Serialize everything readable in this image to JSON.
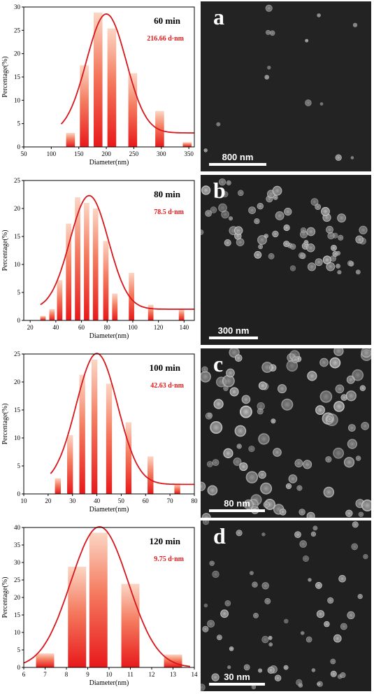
{
  "chart_data": [
    {
      "type": "bar",
      "panel": "a",
      "time_label": "60 min",
      "mean_label": "216.66 d·nm",
      "xlabel": "Diameter(nm)",
      "ylabel": "Percentage(%)",
      "xlim": [
        50,
        360
      ],
      "ylim": [
        0,
        30
      ],
      "xticks": [
        50,
        100,
        150,
        200,
        250,
        300,
        350
      ],
      "yticks": [
        0,
        5,
        10,
        15,
        20,
        25,
        30
      ],
      "bar_width": 16,
      "x": [
        135,
        160,
        185,
        210,
        248,
        297,
        347
      ],
      "values": [
        3.0,
        17.5,
        28.8,
        25.4,
        15.8,
        7.7,
        1.0
      ],
      "fit_center": 200,
      "fit_sigma": 36,
      "fit_amplitude": 25.5,
      "fit_baseline": 3.0,
      "fit_range": [
        118,
        360
      ],
      "sem_scale": "800 nm",
      "sem_letter": "a"
    },
    {
      "type": "bar",
      "panel": "b",
      "time_label": "80 min",
      "mean_label": "78.5 d·nm",
      "xlabel": "Diameter(nm)",
      "ylabel": "Percentage(%)",
      "xlim": [
        15,
        148
      ],
      "ylim": [
        0,
        25
      ],
      "xticks": [
        20,
        40,
        60,
        80,
        100,
        120,
        140
      ],
      "yticks": [
        0,
        5,
        10,
        15,
        20,
        25
      ],
      "bar_width": 4.2,
      "x": [
        30,
        37,
        43,
        50,
        57,
        64,
        71,
        79,
        86,
        99,
        114,
        138
      ],
      "values": [
        0.8,
        2.0,
        7.2,
        17.3,
        22.0,
        21.0,
        20.0,
        14.2,
        4.8,
        8.5,
        2.8,
        2.0
      ],
      "fit_center": 66,
      "fit_sigma": 15,
      "fit_amplitude": 20.3,
      "fit_baseline": 2.0,
      "fit_range": [
        28,
        148
      ],
      "sem_scale": "300 nm",
      "sem_letter": "b"
    },
    {
      "type": "bar",
      "panel": "c",
      "time_label": "100 min",
      "mean_label": "42.63 d·nm",
      "xlabel": "Diameter(nm)",
      "ylabel": "Percentage(%)",
      "xlim": [
        10,
        80
      ],
      "ylim": [
        0,
        25
      ],
      "xticks": [
        10,
        20,
        30,
        40,
        50,
        60,
        70,
        80
      ],
      "yticks": [
        0,
        5,
        10,
        15,
        20,
        25
      ],
      "bar_width": 2.4,
      "x": [
        24,
        29,
        34,
        39,
        45,
        53,
        62,
        73
      ],
      "values": [
        2.8,
        10.5,
        21.3,
        24.0,
        19.7,
        12.8,
        6.7,
        1.7
      ],
      "fit_center": 40,
      "fit_sigma": 8.5,
      "fit_amplitude": 23.4,
      "fit_baseline": 1.7,
      "fit_range": [
        21,
        80
      ],
      "sem_scale": "80 nm",
      "sem_letter": "c"
    },
    {
      "type": "bar",
      "panel": "d",
      "time_label": "120 min",
      "mean_label": "9.75 d·nm",
      "xlabel": "Diameter(nm)",
      "ylabel": "Percentage(%)",
      "xlim": [
        6,
        14
      ],
      "ylim": [
        0,
        40
      ],
      "xticks": [
        6,
        7,
        8,
        9,
        10,
        11,
        12,
        13,
        14
      ],
      "yticks": [
        0,
        5,
        10,
        15,
        20,
        25,
        30,
        35,
        40
      ],
      "bar_width": 0.85,
      "x": [
        7,
        8.5,
        9.5,
        11,
        13
      ],
      "values": [
        4.0,
        28.8,
        38.5,
        23.9,
        3.7
      ],
      "fit_center": 9.55,
      "fit_sigma": 1.35,
      "fit_amplitude": 40.2,
      "fit_baseline": 0,
      "fit_range": [
        6,
        13.8
      ],
      "sem_scale": "30 nm",
      "sem_letter": "d"
    }
  ]
}
